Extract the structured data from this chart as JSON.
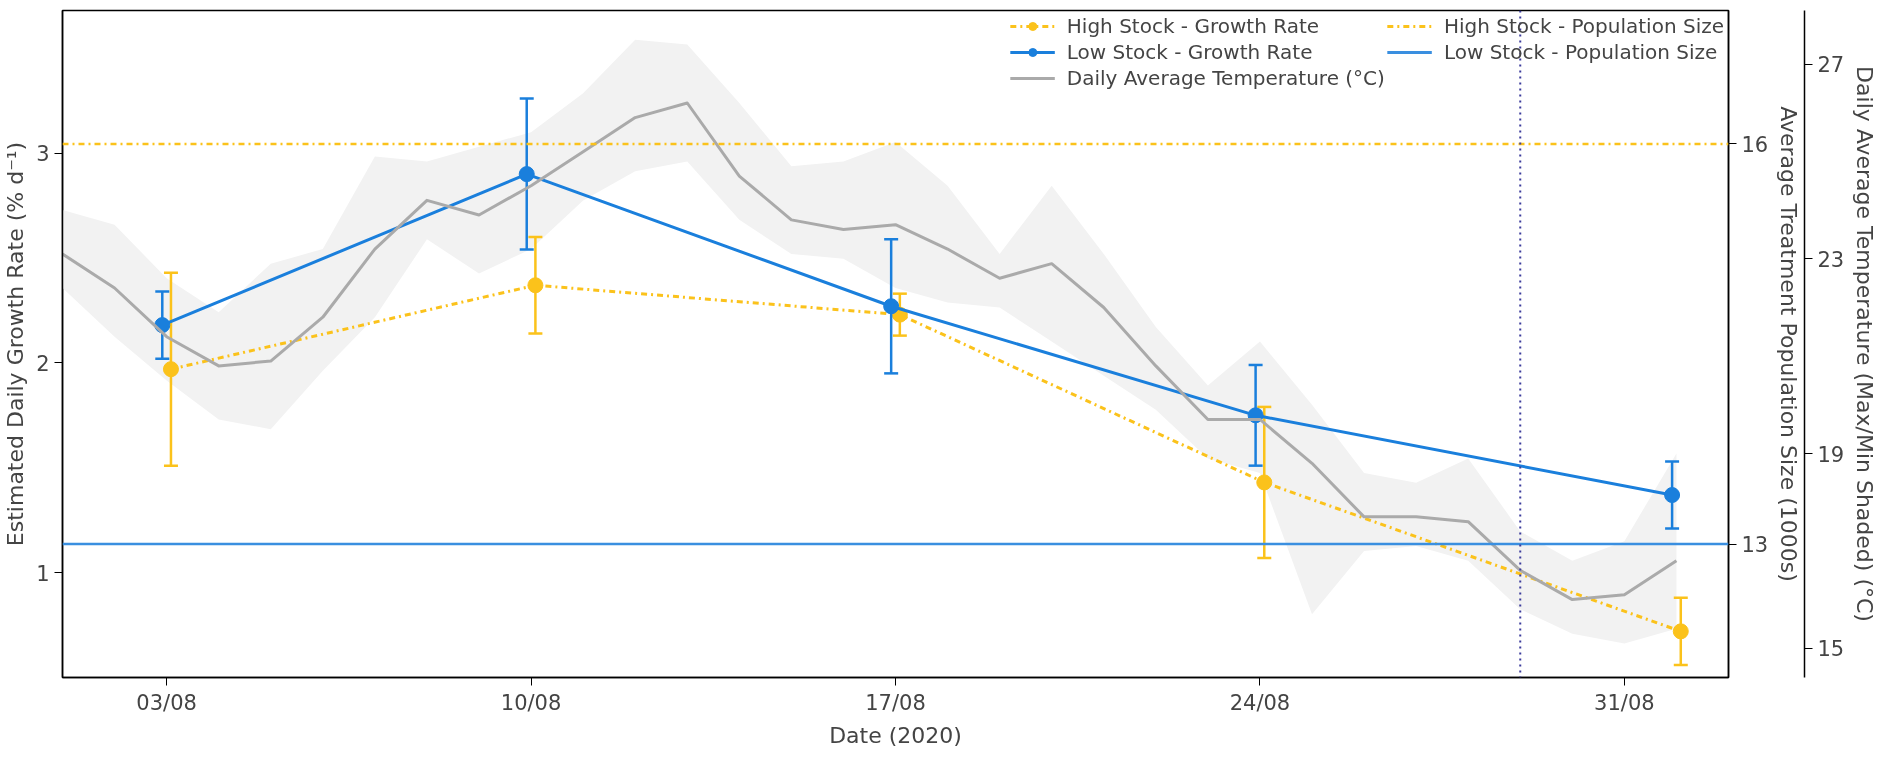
{
  "chart_data": {
    "type": "line",
    "xlabel": "Date (2020)",
    "ylabel": "Estimated Daily Growth Rate (% d⁻¹)",
    "y2label": "Average Treatment Population Size (1000s)",
    "y3label": "Daily Average Temperature (Max/Min Shaded) (°C)",
    "xlim": [
      "2020-08-01",
      "2020-09-02"
    ],
    "xticks": [
      {
        "value": "2020-08-03",
        "label": "03/08"
      },
      {
        "value": "2020-08-10",
        "label": "10/08"
      },
      {
        "value": "2020-08-17",
        "label": "17/08"
      },
      {
        "value": "2020-08-24",
        "label": "24/08"
      },
      {
        "value": "2020-08-31",
        "label": "31/08"
      }
    ],
    "ylim": [
      0.5,
      3.68
    ],
    "yticks": [
      1,
      2,
      3
    ],
    "y2lim": [
      12,
      17
    ],
    "y2ticks": [
      13,
      16
    ],
    "y3lim": [
      14.4,
      28.1
    ],
    "y3ticks": [
      15,
      19,
      23,
      27
    ],
    "grid": false,
    "legend": "top right",
    "marker": "circle",
    "series": [
      {
        "name": "High Stock - Growth Rate",
        "color": "#fbc21b",
        "line_style": "dashdot",
        "x": [
          "2020-08-03T02:00",
          "2020-08-10T02:00",
          "2020-08-17T02:00",
          "2020-08-24T02:00",
          "2020-09-01T02:00"
        ],
        "values": [
          1.97,
          2.37,
          2.23,
          1.43,
          0.72
        ],
        "errors": [
          0.46,
          0.23,
          0.1,
          0.36,
          0.16
        ]
      },
      {
        "name": "Low Stock - Growth Rate",
        "color": "#1a7fdc",
        "line_style": "solid",
        "x": [
          "2020-08-02T22:00",
          "2020-08-09T22:00",
          "2020-08-16T22:00",
          "2020-08-23T22:00",
          "2020-08-31T22:00"
        ],
        "values": [
          2.18,
          2.9,
          2.27,
          1.75,
          1.37
        ],
        "errors": [
          0.16,
          0.36,
          0.32,
          0.24,
          0.16
        ]
      },
      {
        "name": "Daily Average Temperature (°C)",
        "color": "#aaaaaa",
        "line_style": "solid",
        "marker": "none",
        "axis": "y3",
        "x": [
          "2020-08-01",
          "2020-08-02",
          "2020-08-03",
          "2020-08-04",
          "2020-08-05",
          "2020-08-06",
          "2020-08-07",
          "2020-08-08",
          "2020-08-09",
          "2020-08-10",
          "2020-08-11",
          "2020-08-12",
          "2020-08-13",
          "2020-08-14",
          "2020-08-15",
          "2020-08-16",
          "2020-08-17",
          "2020-08-18",
          "2020-08-19",
          "2020-08-20",
          "2020-08-21",
          "2020-08-22",
          "2020-08-23",
          "2020-08-24",
          "2020-08-25",
          "2020-08-26",
          "2020-08-27",
          "2020-08-28",
          "2020-08-29",
          "2020-08-30",
          "2020-08-31",
          "2020-09-01"
        ],
        "values": [
          23.1,
          22.4,
          21.4,
          20.8,
          20.9,
          21.8,
          23.2,
          24.2,
          23.9,
          24.5,
          25.2,
          25.9,
          26.2,
          24.7,
          23.8,
          23.6,
          23.7,
          23.2,
          22.6,
          22.9,
          22.0,
          20.8,
          19.7,
          19.7,
          18.8,
          17.7,
          17.7,
          17.6,
          16.6,
          16.0,
          16.1,
          16.8
        ],
        "lower": [
          22.4,
          21.4,
          20.5,
          19.7,
          19.5,
          20.7,
          21.8,
          23.4,
          22.7,
          23.2,
          24.2,
          24.8,
          25.0,
          23.8,
          23.1,
          23.0,
          22.4,
          22.1,
          22.0,
          21.3,
          20.6,
          19.9,
          18.9,
          18.6,
          15.7,
          17.0,
          17.1,
          16.8,
          15.8,
          15.3,
          15.1,
          15.4
        ],
        "upper": [
          24.0,
          23.7,
          22.6,
          21.9,
          22.9,
          23.2,
          25.1,
          25.0,
          25.3,
          25.6,
          26.4,
          27.5,
          27.4,
          26.2,
          24.9,
          25.0,
          25.4,
          24.5,
          23.1,
          24.5,
          23.1,
          21.6,
          20.4,
          21.3,
          20.0,
          18.6,
          18.4,
          18.9,
          17.4,
          16.8,
          17.2,
          19.0
        ]
      }
    ],
    "ref_lines": [
      {
        "axis": "y2",
        "value": 16,
        "label": "High Stock - Population Size",
        "color": "#fbc21b",
        "line_style": "dashdot"
      },
      {
        "axis": "y2",
        "value": 13,
        "label": "Low Stock - Population Size",
        "color": "#3a8fe0",
        "line_style": "solid"
      },
      {
        "axis": "x",
        "value": "2020-08-29",
        "color": "#3c3c9c",
        "line_style": "dotted"
      }
    ]
  }
}
